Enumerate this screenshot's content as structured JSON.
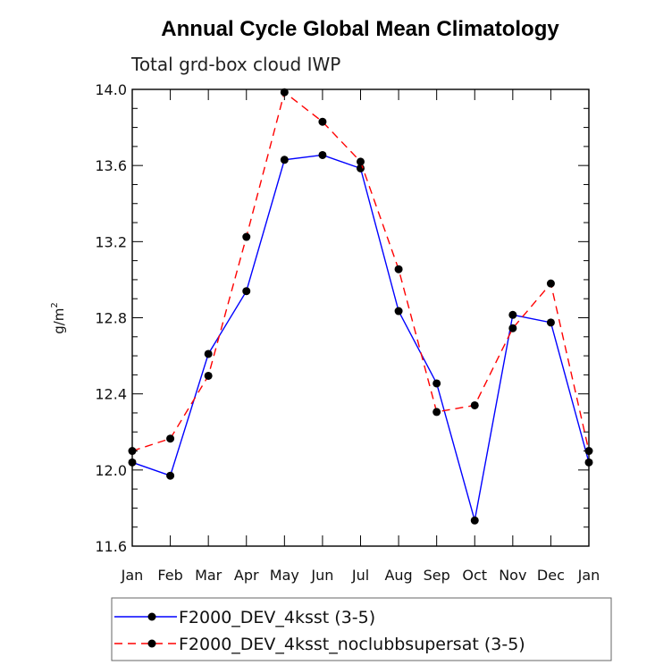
{
  "chart_data": {
    "type": "line",
    "title": "Annual Cycle Global Mean Climatology",
    "subtitle": "Total grd-box cloud IWP",
    "ylabel": "g/m",
    "ylabel_superscript": "2",
    "xlabel": "",
    "categories": [
      "Jan",
      "Feb",
      "Mar",
      "Apr",
      "May",
      "Jun",
      "Jul",
      "Aug",
      "Sep",
      "Oct",
      "Nov",
      "Dec",
      "Jan"
    ],
    "ylim": [
      11.6,
      14.0
    ],
    "yticks": [
      "11.6",
      "12.0",
      "12.4",
      "12.8",
      "13.2",
      "13.6",
      "14.0"
    ],
    "grid": false,
    "legend_position": "bottom",
    "series": [
      {
        "name": "F2000_DEV_4ksst (3-5)",
        "color": "#0000ff",
        "line_style": "solid",
        "values": [
          12.04,
          11.97,
          12.61,
          12.94,
          13.63,
          13.655,
          13.585,
          12.835,
          12.455,
          11.735,
          12.815,
          12.775,
          12.04
        ]
      },
      {
        "name": "F2000_DEV_4ksst_noclubbsupersat (3-5)",
        "color": "#ff0000",
        "line_style": "dashed",
        "values": [
          12.1,
          12.165,
          12.495,
          13.225,
          13.985,
          13.83,
          13.62,
          13.055,
          12.305,
          12.34,
          12.745,
          12.98,
          12.1
        ]
      }
    ]
  }
}
